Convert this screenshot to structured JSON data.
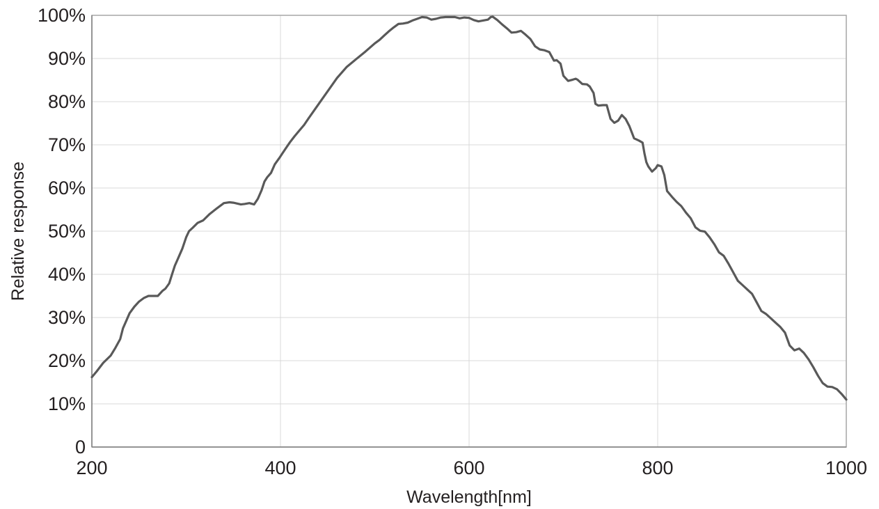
{
  "chart_data": {
    "type": "line",
    "title": "",
    "xlabel": "Wavelength[nm]",
    "ylabel": "Relative response",
    "xlim": [
      200,
      1000
    ],
    "ylim": [
      0,
      100
    ],
    "x_ticks": [
      200,
      400,
      600,
      800,
      1000
    ],
    "x_tick_labels": [
      "200",
      "400",
      "600",
      "800",
      "1000"
    ],
    "y_ticks": [
      0,
      10,
      20,
      30,
      40,
      50,
      60,
      70,
      80,
      90,
      100
    ],
    "y_tick_labels": [
      "0",
      "10%",
      "20%",
      "30%",
      "40%",
      "50%",
      "60%",
      "70%",
      "80%",
      "90%",
      "100%"
    ],
    "grid": true,
    "colors": {
      "line": "#595959",
      "grid": "#d9d9d9",
      "frame": "#a6a6a6",
      "text": "#231f20"
    },
    "series": [
      {
        "x": [
          200,
          205,
          212,
          220,
          225,
          230,
          233,
          236,
          240,
          245,
          250,
          255,
          260,
          265,
          270,
          275,
          278,
          282,
          285,
          288,
          292,
          296,
          300,
          303,
          307,
          312,
          318,
          325,
          332,
          340,
          346,
          350,
          354,
          358,
          362,
          367,
          372,
          376,
          380,
          383,
          386,
          390,
          394,
          399,
          402,
          405,
          410,
          415,
          420,
          425,
          430,
          440,
          450,
          460,
          470,
          480,
          490,
          500,
          505,
          510,
          515,
          520,
          525,
          530,
          535,
          540,
          545,
          550,
          555,
          560,
          565,
          570,
          575,
          580,
          585,
          590,
          595,
          600,
          605,
          610,
          615,
          620,
          623,
          625,
          630,
          635,
          640,
          645,
          650,
          655,
          660,
          665,
          670,
          675,
          680,
          685,
          690,
          693,
          697,
          700,
          705,
          710,
          713,
          715,
          720,
          725,
          728,
          732,
          734,
          737,
          742,
          746,
          750,
          754,
          758,
          762,
          766,
          770,
          775,
          780,
          784,
          786,
          788,
          790,
          794,
          798,
          800,
          804,
          807,
          810,
          815,
          820,
          825,
          830,
          835,
          840,
          845,
          850,
          855,
          860,
          865,
          870,
          875,
          880,
          885,
          890,
          895,
          900,
          905,
          910,
          915,
          920,
          925,
          930,
          935,
          940,
          945,
          950,
          955,
          960,
          965,
          970,
          975,
          980,
          985,
          990,
          995,
          1000
        ],
        "values": [
          16.2,
          17.5,
          19.5,
          21.2,
          23.0,
          25.0,
          27.5,
          29.0,
          31.0,
          32.5,
          33.7,
          34.5,
          35.0,
          35.0,
          35.0,
          36.2,
          36.7,
          37.9,
          40.0,
          42.0,
          44.0,
          46.0,
          48.6,
          50.0,
          50.8,
          51.9,
          52.5,
          54.0,
          55.2,
          56.5,
          56.7,
          56.6,
          56.4,
          56.2,
          56.3,
          56.5,
          56.2,
          57.5,
          59.5,
          61.5,
          62.5,
          63.5,
          65.5,
          67.0,
          68.0,
          69.0,
          70.6,
          72.0,
          73.3,
          74.6,
          76.2,
          79.3,
          82.4,
          85.5,
          88.0,
          89.8,
          91.6,
          93.5,
          94.3,
          95.3,
          96.3,
          97.2,
          98.0,
          98.1,
          98.3,
          98.8,
          99.2,
          99.6,
          99.5,
          99.0,
          99.2,
          99.5,
          99.6,
          99.6,
          99.6,
          99.3,
          99.5,
          99.4,
          98.9,
          98.6,
          98.8,
          99.0,
          99.6,
          99.7,
          98.9,
          97.9,
          97.0,
          96.0,
          96.1,
          96.4,
          95.5,
          94.5,
          92.8,
          92.1,
          91.9,
          91.5,
          89.5,
          89.6,
          88.8,
          86.0,
          84.8,
          85.1,
          85.3,
          85.1,
          84.1,
          84.0,
          83.5,
          82.0,
          79.5,
          79.1,
          79.2,
          79.2,
          76.0,
          75.1,
          75.6,
          76.9,
          76.0,
          74.3,
          71.5,
          71.0,
          70.5,
          68.0,
          66.0,
          65.0,
          63.8,
          64.6,
          65.3,
          65.0,
          63.0,
          59.3,
          58.0,
          56.8,
          55.8,
          54.3,
          53.0,
          50.9,
          50.1,
          49.9,
          48.6,
          47.0,
          45.1,
          44.3,
          42.5,
          40.5,
          38.5,
          37.5,
          36.5,
          35.5,
          33.5,
          31.5,
          30.8,
          29.8,
          28.8,
          27.8,
          26.5,
          23.5,
          22.4,
          22.8,
          21.8,
          20.3,
          18.5,
          16.5,
          14.8,
          14.0,
          13.9,
          13.4,
          12.3,
          11.0
        ]
      }
    ]
  }
}
